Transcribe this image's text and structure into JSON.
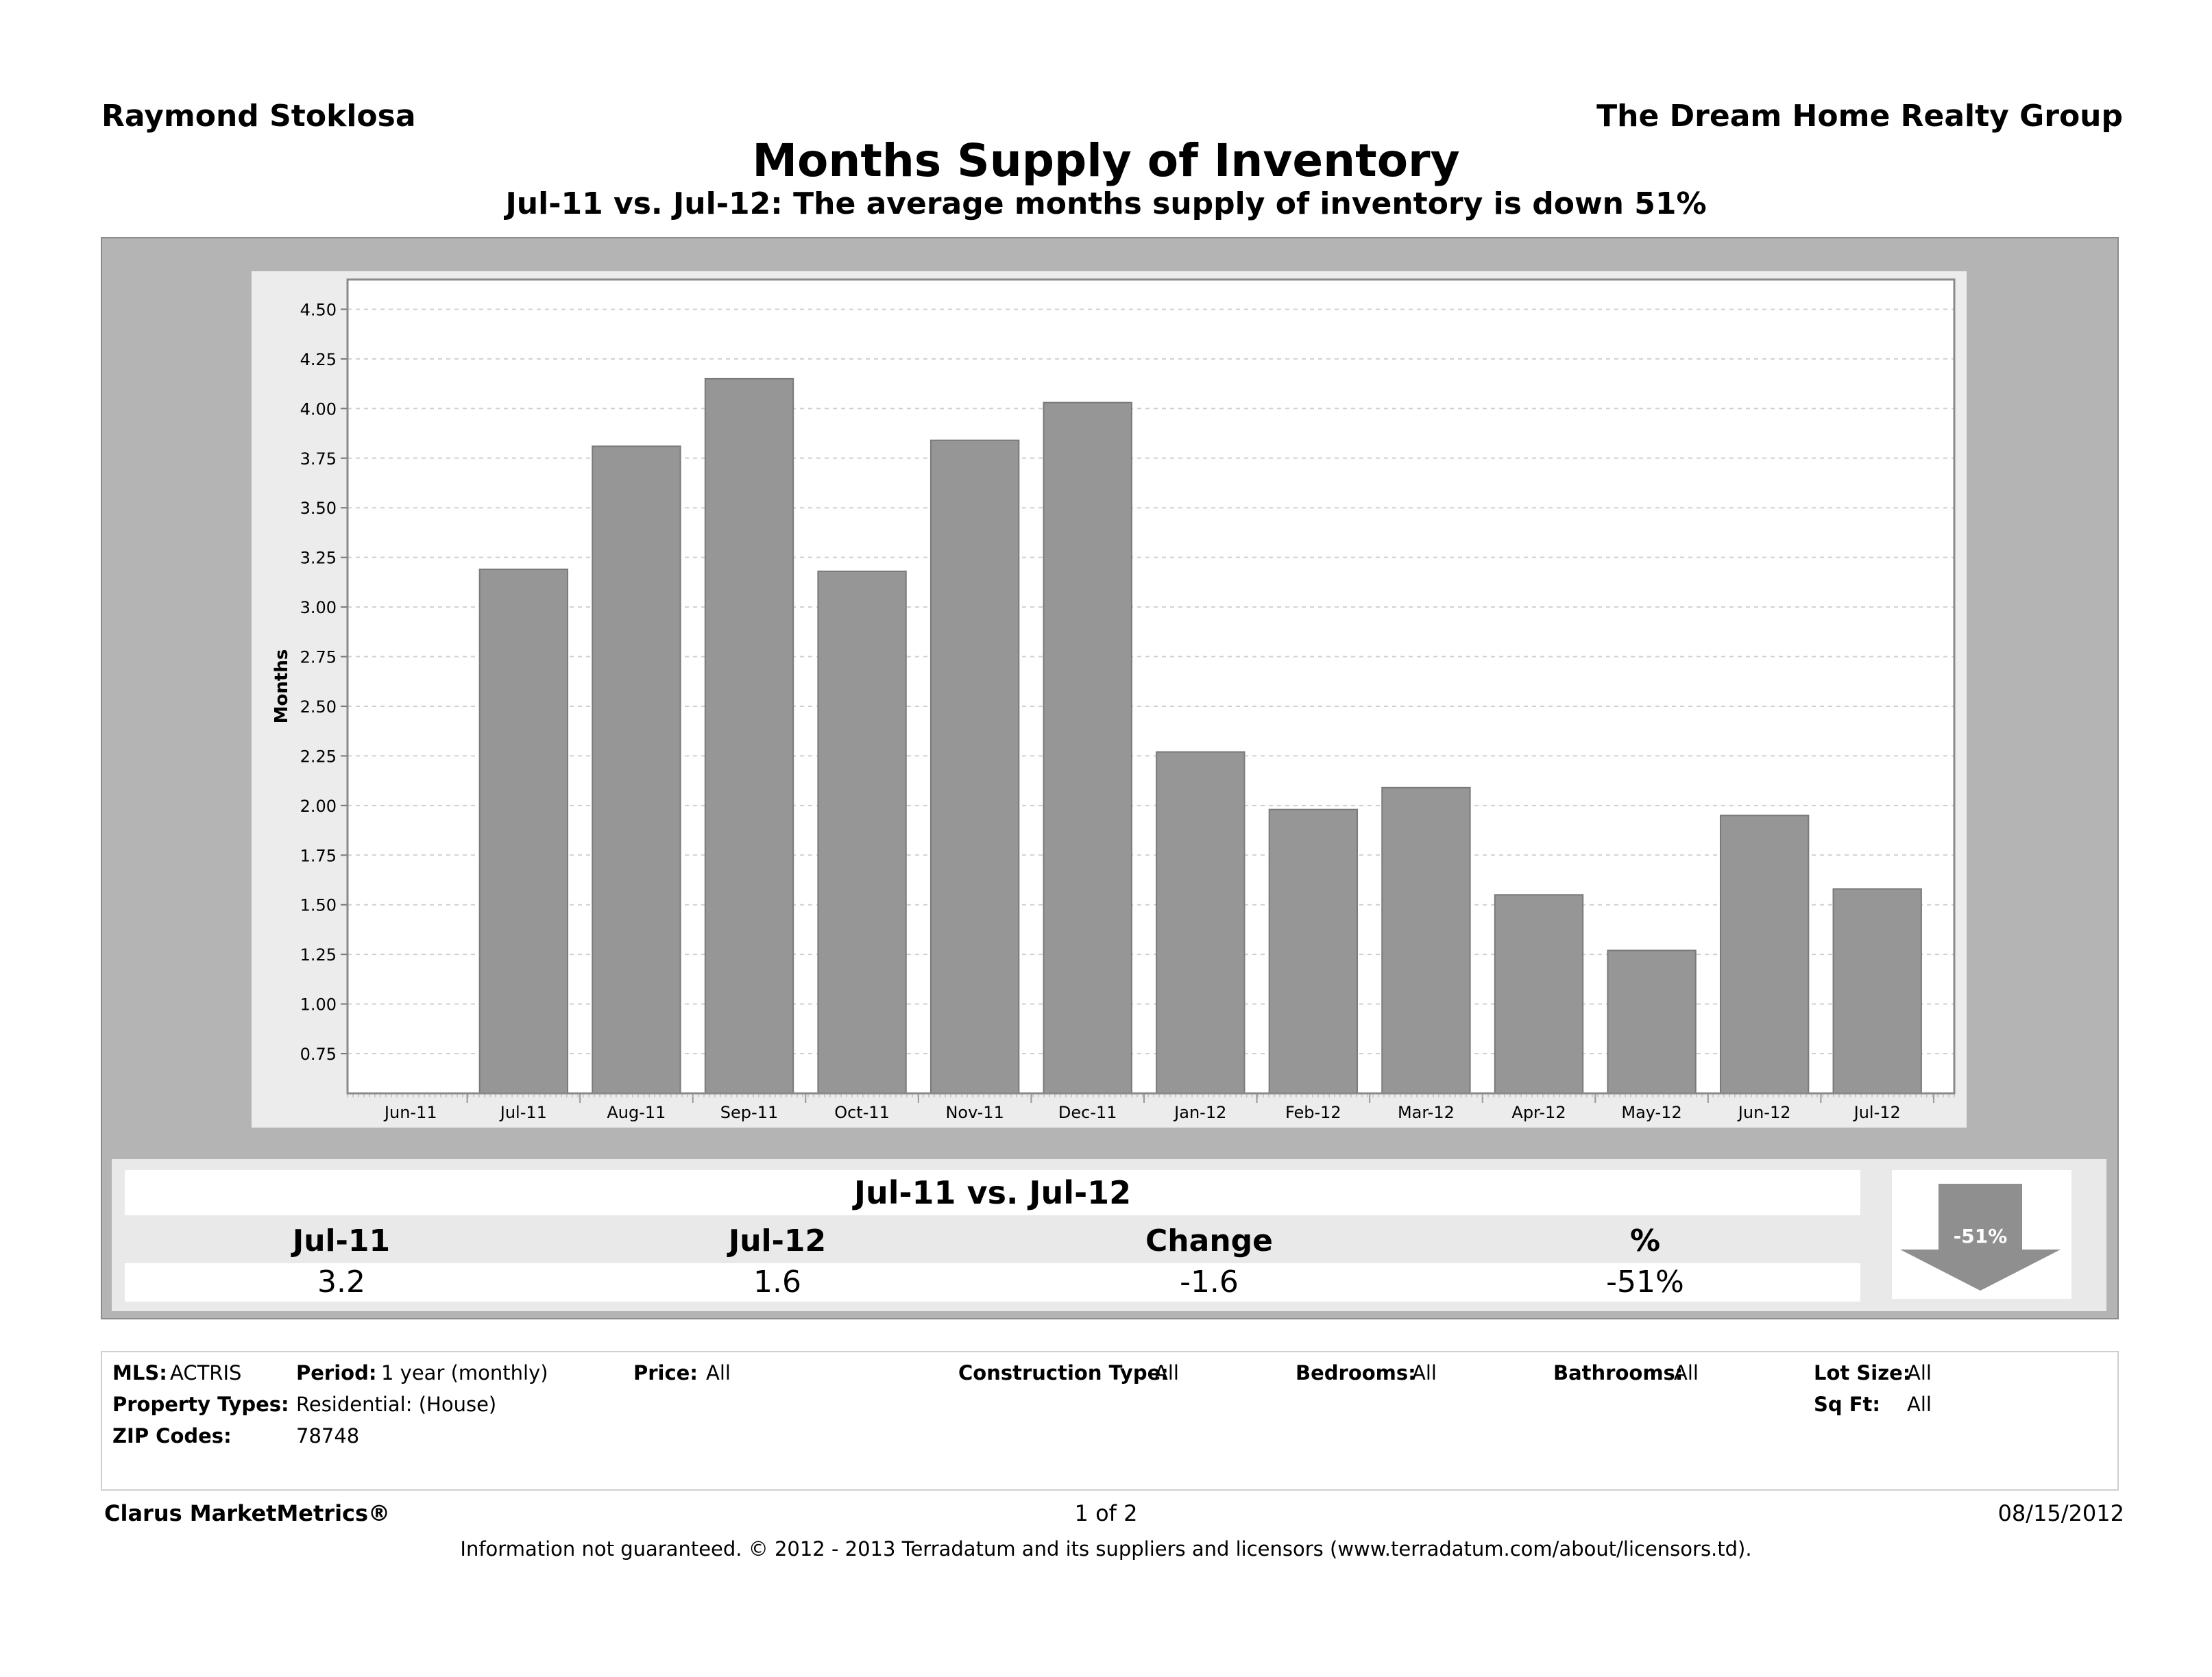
{
  "header": {
    "agent": "Raymond Stoklosa",
    "broker": "The Dream Home Realty Group",
    "title": "Months Supply of Inventory",
    "subtitle": "Jul-11 vs. Jul-12:  The average months supply of inventory is down 51%"
  },
  "chart_data": {
    "type": "bar",
    "categories": [
      "Jun-11",
      "Jul-11",
      "Aug-11",
      "Sep-11",
      "Oct-11",
      "Nov-11",
      "Dec-11",
      "Jan-12",
      "Feb-12",
      "Mar-12",
      "Apr-12",
      "May-12",
      "Jun-12",
      "Jul-12"
    ],
    "values": [
      null,
      3.19,
      3.81,
      4.15,
      3.18,
      3.84,
      4.03,
      2.27,
      1.98,
      2.09,
      1.55,
      1.27,
      1.95,
      1.58
    ],
    "ylabel": "Months",
    "ylim": [
      0.55,
      4.65
    ],
    "yticks": [
      "4.50",
      "4.25",
      "4.00",
      "3.75",
      "3.50",
      "3.25",
      "3.00",
      "2.75",
      "2.50",
      "2.25",
      "2.00",
      "1.75",
      "1.50",
      "1.25",
      "1.00",
      "0.75"
    ],
    "grid": true,
    "bar_color": "#969696"
  },
  "summary": {
    "title": "Jul-11 vs. Jul-12",
    "headers": [
      "Jul-11",
      "Jul-12",
      "Change",
      "%"
    ],
    "values": [
      "3.2",
      "1.6",
      "-1.6",
      "-51%"
    ],
    "arrow_label": "-51%"
  },
  "filters": {
    "mls_label": "MLS:",
    "mls_value": "ACTRIS",
    "period_label": "Period:",
    "period_value": "1 year (monthly)",
    "price_label": "Price:",
    "price_value": "All",
    "construction_label": "Construction Type:",
    "construction_value": "All",
    "bedrooms_label": "Bedrooms:",
    "bedrooms_value": "All",
    "bathrooms_label": "Bathrooms:",
    "bathrooms_value": "All",
    "lotsize_label": "Lot Size:",
    "lotsize_value": "All",
    "proptype_label": "Property Types:",
    "proptype_value": "Residential: (House)",
    "sqft_label": "Sq Ft:",
    "sqft_value": "All",
    "zip_label": "ZIP Codes:",
    "zip_value": "78748"
  },
  "footer": {
    "brand": "Clarus MarketMetrics®",
    "page": "1 of 2",
    "date": "08/15/2012",
    "disclaimer": "Information not guaranteed.  © 2012 - 2013 Terradatum and its suppliers and licensors (www.terradatum.com/about/licensors.td)."
  }
}
